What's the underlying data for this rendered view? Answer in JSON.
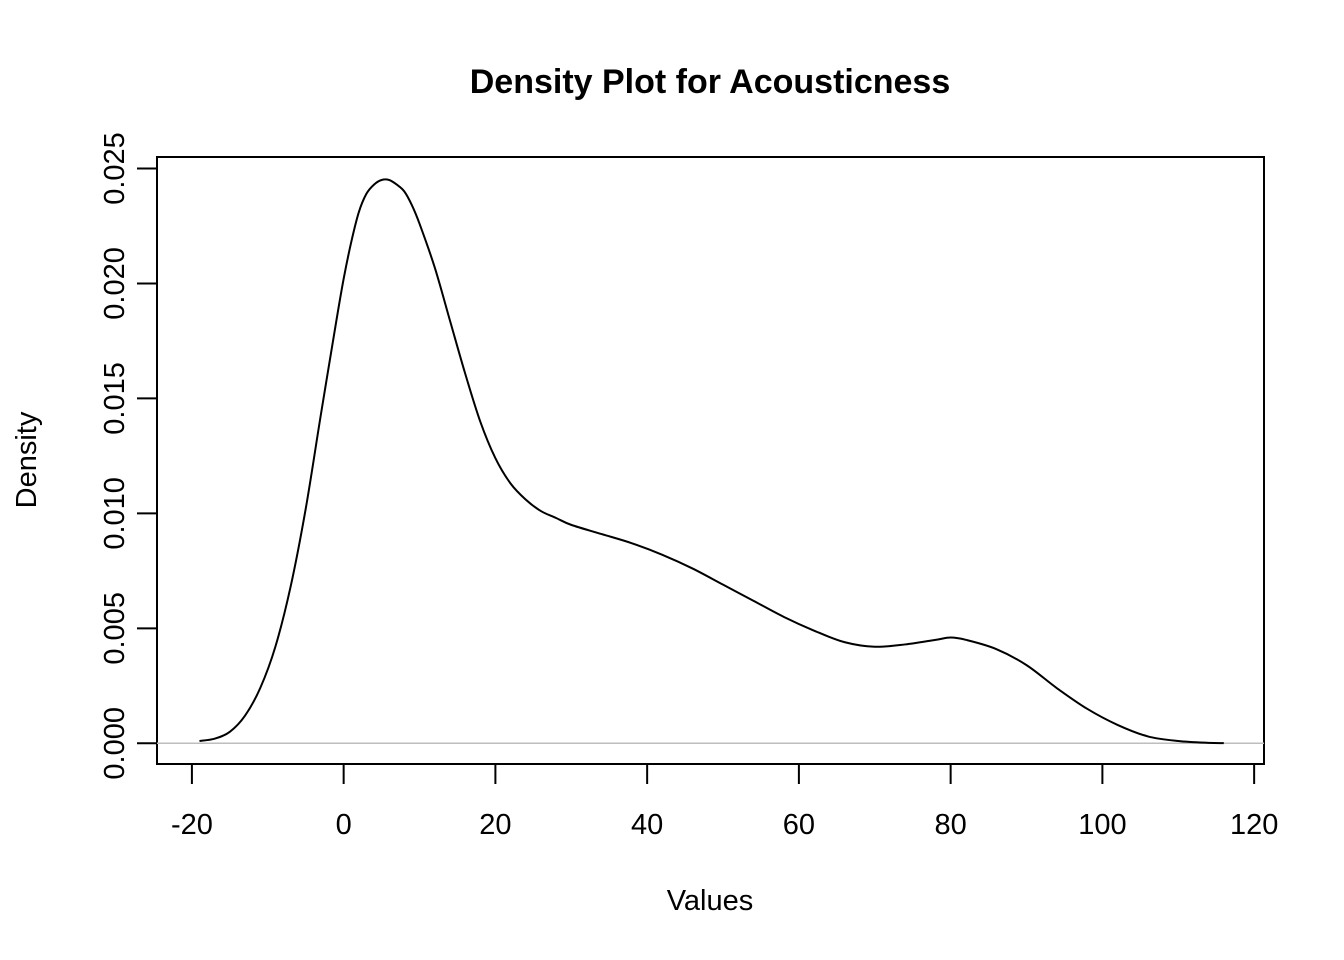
{
  "chart_data": {
    "type": "line",
    "title": "Density Plot for Acousticness",
    "xlabel": "Values",
    "ylabel": "Density",
    "xlim": [
      -24.6,
      121.3
    ],
    "ylim": [
      -0.0009,
      0.0255
    ],
    "x_ticks": [
      -20,
      0,
      20,
      40,
      60,
      80,
      100,
      120
    ],
    "x_tick_labels": [
      "-20",
      "0",
      "20",
      "40",
      "60",
      "80",
      "100",
      "120"
    ],
    "y_ticks": [
      0,
      0.005,
      0.01,
      0.015,
      0.02,
      0.025
    ],
    "y_tick_labels": [
      "0.000",
      "0.005",
      "0.010",
      "0.015",
      "0.020",
      "0.025"
    ],
    "baseline": 0,
    "grid": false,
    "legend": "none",
    "line_color": "#000000",
    "baseline_color": "#bebebe",
    "series": [
      {
        "x": [
          -19,
          -17,
          -15,
          -13,
          -11,
          -9,
          -7,
          -5,
          -3,
          -1,
          0,
          1,
          2,
          3,
          4,
          5,
          6,
          7,
          8,
          9,
          10,
          12,
          14,
          16,
          18,
          20,
          22,
          24,
          26,
          28,
          30,
          34,
          38,
          42,
          46,
          50,
          54,
          58,
          62,
          66,
          70,
          74,
          78,
          80,
          82,
          86,
          90,
          94,
          98,
          102,
          106,
          110,
          114,
          116
        ],
        "y": [
          0.0001,
          0.0002,
          0.0005,
          0.0012,
          0.0024,
          0.0042,
          0.0068,
          0.0102,
          0.0143,
          0.0183,
          0.0202,
          0.0218,
          0.0231,
          0.0239,
          0.0243,
          0.0245,
          0.0245,
          0.0243,
          0.024,
          0.0234,
          0.0226,
          0.0207,
          0.0184,
          0.0161,
          0.014,
          0.0124,
          0.0113,
          0.0106,
          0.0101,
          0.0098,
          0.0095,
          0.0091,
          0.0087,
          0.0082,
          0.0076,
          0.0069,
          0.0062,
          0.0055,
          0.0049,
          0.0044,
          0.0042,
          0.0043,
          0.0045,
          0.0046,
          0.0045,
          0.0041,
          0.0034,
          0.0024,
          0.0015,
          0.0008,
          0.0003,
          0.0001,
          2e-05,
          1e-05
        ]
      }
    ]
  }
}
